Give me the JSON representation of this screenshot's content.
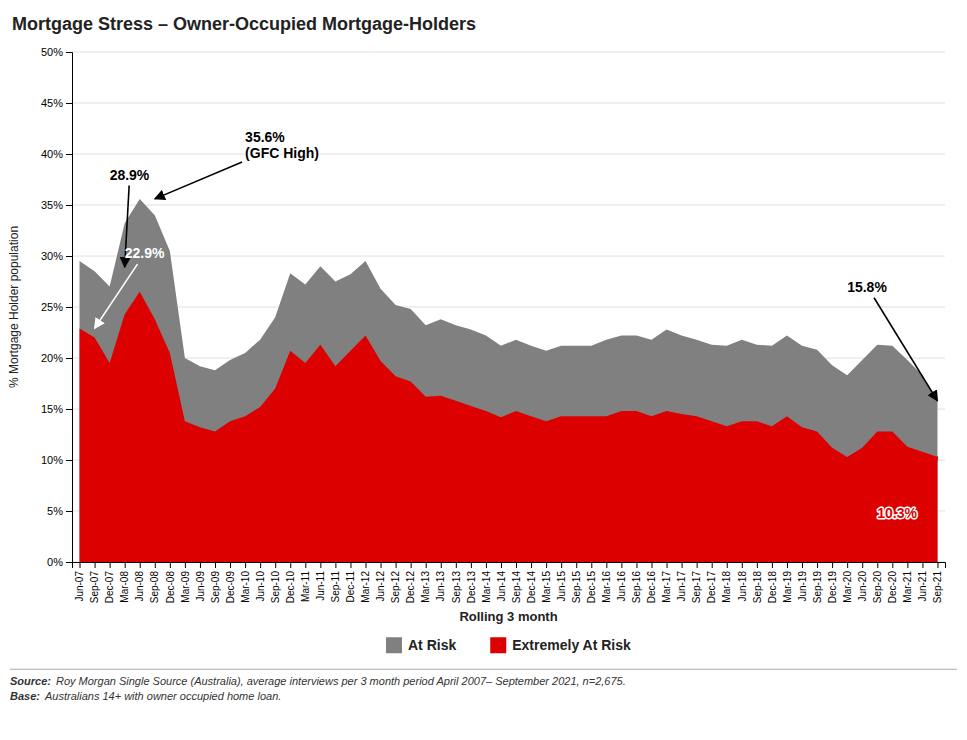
{
  "chart_data": {
    "type": "area",
    "title": "Mortgage Stress – Owner-Occupied Mortgage-Holders",
    "x_label": "Rolling 3 month",
    "y_label": "% Mortgage Holder population",
    "stacked": false,
    "grid": true,
    "legend": "bottom",
    "categories": [
      "Jun-07",
      "Sep-07",
      "Dec-07",
      "Mar-08",
      "Jun-08",
      "Sep-08",
      "Dec-08",
      "Mar-09",
      "Jun-09",
      "Sep-09",
      "Dec-09",
      "Mar-10",
      "Jun-10",
      "Sep-10",
      "Dec-10",
      "Mar-11",
      "Jun-11",
      "Sep-11",
      "Dec-11",
      "Mar-12",
      "Jun-12",
      "Sep-12",
      "Dec-12",
      "Mar-13",
      "Jun-13",
      "Sep-13",
      "Dec-13",
      "Mar-14",
      "Jun-14",
      "Sep-14",
      "Dec-14",
      "Mar-15",
      "Jun-15",
      "Sep-15",
      "Dec-15",
      "Mar-16",
      "Jun-16",
      "Sep-16",
      "Dec-16",
      "Mar-17",
      "Jun-17",
      "Sep-17",
      "Dec-17",
      "Mar-18",
      "Jun-18",
      "Sep-18",
      "Dec-18",
      "Mar-19",
      "Jun-19",
      "Sep-19",
      "Dec-19",
      "Mar-20",
      "Jun-20",
      "Sep-20",
      "Dec-20",
      "Mar-21",
      "Jun-21",
      "Sep-21"
    ],
    "series": [
      {
        "name": "At Risk",
        "color": "#808080",
        "values": [
          0.295,
          0.285,
          0.27,
          0.332,
          0.356,
          0.34,
          0.305,
          0.2,
          0.192,
          0.188,
          0.198,
          0.205,
          0.218,
          0.24,
          0.283,
          0.272,
          0.29,
          0.275,
          0.282,
          0.295,
          0.268,
          0.252,
          0.248,
          0.232,
          0.238,
          0.232,
          0.228,
          0.222,
          0.212,
          0.218,
          0.212,
          0.207,
          0.212,
          0.212,
          0.212,
          0.218,
          0.222,
          0.222,
          0.218,
          0.228,
          0.222,
          0.218,
          0.213,
          0.212,
          0.218,
          0.213,
          0.212,
          0.222,
          0.212,
          0.208,
          0.193,
          0.183,
          0.198,
          0.213,
          0.212,
          0.198,
          0.183,
          0.158
        ]
      },
      {
        "name": "Extremely At Risk",
        "color": "#dd0000",
        "values": [
          0.229,
          0.22,
          0.195,
          0.243,
          0.265,
          0.238,
          0.205,
          0.138,
          0.132,
          0.128,
          0.138,
          0.143,
          0.152,
          0.17,
          0.207,
          0.195,
          0.213,
          0.192,
          0.207,
          0.222,
          0.197,
          0.182,
          0.177,
          0.162,
          0.163,
          0.158,
          0.153,
          0.148,
          0.142,
          0.148,
          0.143,
          0.138,
          0.143,
          0.143,
          0.143,
          0.143,
          0.148,
          0.148,
          0.143,
          0.148,
          0.145,
          0.143,
          0.138,
          0.133,
          0.138,
          0.138,
          0.133,
          0.143,
          0.132,
          0.128,
          0.112,
          0.103,
          0.112,
          0.128,
          0.128,
          0.113,
          0.108,
          0.103
        ]
      }
    ],
    "ylim": [
      0,
      0.5
    ],
    "yticks": [
      {
        "value": 0,
        "label": "0%"
      },
      {
        "value": 0.05,
        "label": "5%"
      },
      {
        "value": 0.1,
        "label": "10%"
      },
      {
        "value": 0.15,
        "label": "15%"
      },
      {
        "value": 0.2,
        "label": "20%"
      },
      {
        "value": 0.25,
        "label": "25%"
      },
      {
        "value": 0.3,
        "label": "30%"
      },
      {
        "value": 0.35,
        "label": "35%"
      },
      {
        "value": 0.4,
        "label": "40%"
      },
      {
        "value": 0.45,
        "label": "45%"
      },
      {
        "value": 0.5,
        "label": "50%"
      }
    ],
    "annotations": [
      {
        "text": "28.9%",
        "x": "Mar-08",
        "y": 0.289,
        "text_x": "Dec-07",
        "text_y": 0.372,
        "color": "#000000"
      },
      {
        "text": "35.6%\n(GFC High)",
        "x": "Sep-08",
        "y": 0.356,
        "text_x": "Mar-10",
        "text_y": 0.393,
        "color": "#000000"
      },
      {
        "text": "22.9%",
        "x": "Sep-07",
        "y": 0.229,
        "text_x": "Mar-08",
        "text_y": 0.295,
        "color": "#ffffff"
      },
      {
        "text": "15.8%",
        "x": "Sep-21",
        "y": 0.158,
        "text_x": "Mar-20",
        "text_y": 0.262,
        "color": "#000000"
      },
      {
        "text": "10.3%",
        "x": "Sep-21",
        "y": 0.103,
        "text_x": "Sep-20",
        "text_y": 0.055,
        "color": "#dd0000"
      }
    ],
    "source": [
      {
        "label": "Source:",
        "text": "Roy Morgan Single Source (Australia), average interviews per 3 month period April 2007– September 2021, n=2,675."
      },
      {
        "label": "Base:",
        "text": "Australians 14+ with owner occupied home loan."
      }
    ]
  }
}
